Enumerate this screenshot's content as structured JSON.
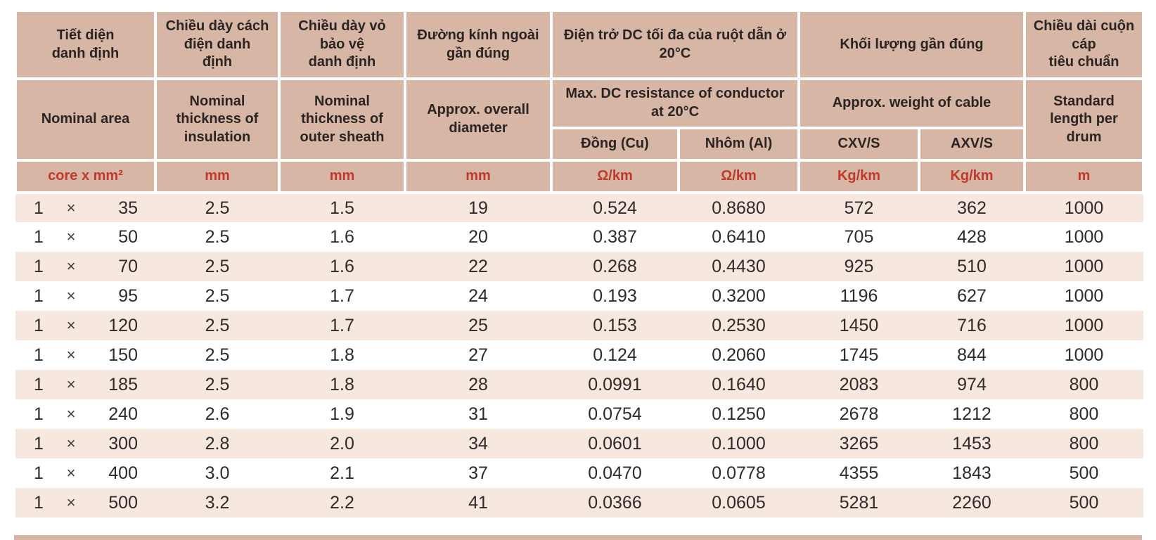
{
  "colors": {
    "header_bg": "#d8b6a6",
    "stripe_bg": "#f7e8df",
    "unit_text_red": "#c0392e",
    "header_text": "#2a2522",
    "data_text": "#2f2b29",
    "grid_line": "#ffffff"
  },
  "table": {
    "header_vn": {
      "nominal_area": "Tiết diện\ndanh định",
      "insulation_thickness": "Chiều dày cách\nđiện danh\nđịnh",
      "sheath_thickness": "Chiều dày vỏ\nbảo vệ\ndanh định",
      "overall_diameter": "Đường kính ngoài\ngần đúng",
      "dc_resistance": "Điện trở DC tối đa của ruột dẫn ở\n20°C",
      "weight": "Khối lượng gần đúng",
      "drum_length": "Chiều dài cuộn\ncáp\ntiêu chuẩn"
    },
    "header_en": {
      "nominal_area": "Nominal area",
      "insulation_thickness": "Nominal\nthickness of\ninsulation",
      "sheath_thickness": "Nominal\nthickness of\nouter sheath",
      "overall_diameter": "Approx. overall\ndiameter",
      "dc_resistance": "Max. DC resistance of conductor\nat 20°C",
      "weight": "Approx. weight of cable",
      "drum_length": "Standard\nlength per\ndrum"
    },
    "subheaders": {
      "copper": "Đồng (Cu)",
      "aluminium": "Nhôm (Al)",
      "cxvs": "CXV/S",
      "axvs": "AXV/S"
    },
    "units": [
      "core x mm²",
      "mm",
      "mm",
      "mm",
      "Ω/km",
      "Ω/km",
      "Kg/km",
      "Kg/km",
      "m"
    ],
    "times_symbol": "×",
    "rows": [
      {
        "cores": "1",
        "size": "35",
        "values": [
          "2.5",
          "1.5",
          "19",
          "0.524",
          "0.8680",
          "572",
          "362",
          "1000"
        ]
      },
      {
        "cores": "1",
        "size": "50",
        "values": [
          "2.5",
          "1.6",
          "20",
          "0.387",
          "0.6410",
          "705",
          "428",
          "1000"
        ]
      },
      {
        "cores": "1",
        "size": "70",
        "values": [
          "2.5",
          "1.6",
          "22",
          "0.268",
          "0.4430",
          "925",
          "510",
          "1000"
        ]
      },
      {
        "cores": "1",
        "size": "95",
        "values": [
          "2.5",
          "1.7",
          "24",
          "0.193",
          "0.3200",
          "1196",
          "627",
          "1000"
        ]
      },
      {
        "cores": "1",
        "size": "120",
        "values": [
          "2.5",
          "1.7",
          "25",
          "0.153",
          "0.2530",
          "1450",
          "716",
          "1000"
        ]
      },
      {
        "cores": "1",
        "size": "150",
        "values": [
          "2.5",
          "1.8",
          "27",
          "0.124",
          "0.2060",
          "1745",
          "844",
          "1000"
        ]
      },
      {
        "cores": "1",
        "size": "185",
        "values": [
          "2.5",
          "1.8",
          "28",
          "0.0991",
          "0.1640",
          "2083",
          "974",
          "800"
        ]
      },
      {
        "cores": "1",
        "size": "240",
        "values": [
          "2.6",
          "1.9",
          "31",
          "0.0754",
          "0.1250",
          "2678",
          "1212",
          "800"
        ]
      },
      {
        "cores": "1",
        "size": "300",
        "values": [
          "2.8",
          "2.0",
          "34",
          "0.0601",
          "0.1000",
          "3265",
          "1453",
          "800"
        ]
      },
      {
        "cores": "1",
        "size": "400",
        "values": [
          "3.0",
          "2.1",
          "37",
          "0.0470",
          "0.0778",
          "4355",
          "1843",
          "500"
        ]
      },
      {
        "cores": "1",
        "size": "500",
        "values": [
          "3.2",
          "2.2",
          "41",
          "0.0366",
          "0.0605",
          "5281",
          "2260",
          "500"
        ]
      }
    ]
  }
}
